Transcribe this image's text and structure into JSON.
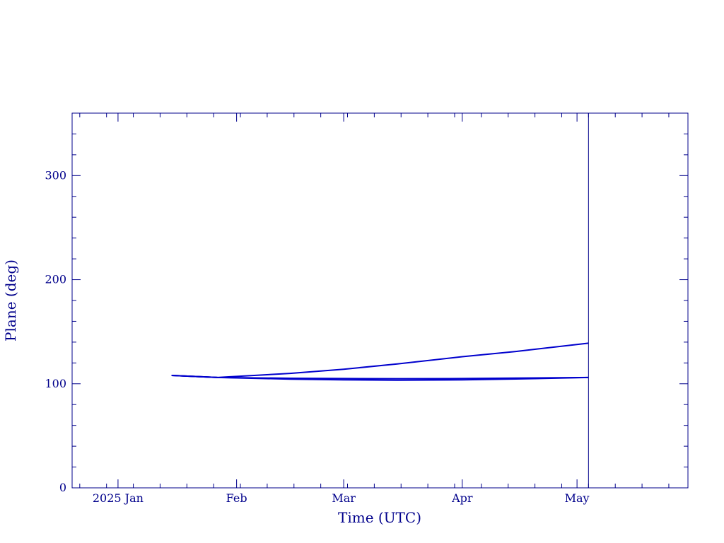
{
  "chart_data": {
    "type": "line",
    "title": "",
    "xlabel": "Time (UTC)",
    "ylabel": "Plane (deg)",
    "x_scale": "time",
    "xlim": [
      "2024-12-20",
      "2025-05-30"
    ],
    "ylim": [
      0,
      360
    ],
    "x_ticks": [
      {
        "date": "2025-01-01",
        "label": "2025 Jan"
      },
      {
        "date": "2025-02-01",
        "label": "Feb"
      },
      {
        "date": "2025-03-01",
        "label": "Mar"
      },
      {
        "date": "2025-04-01",
        "label": "Apr"
      },
      {
        "date": "2025-05-01",
        "label": "May"
      }
    ],
    "y_ticks": [
      0,
      100,
      200,
      300
    ],
    "grid": false,
    "color": "#0000cd",
    "marker_line": {
      "date": "2025-05-04"
    },
    "series": [
      {
        "x": [
          "2025-01-15",
          "2025-01-27",
          "2025-02-15",
          "2025-03-01",
          "2025-03-15",
          "2025-04-01",
          "2025-04-15",
          "2025-05-04"
        ],
        "y": [
          108,
          106,
          110,
          114,
          119,
          126,
          131,
          139
        ]
      },
      {
        "x": [
          "2025-01-15",
          "2025-01-27",
          "2025-02-15",
          "2025-03-01",
          "2025-03-15",
          "2025-04-01",
          "2025-04-15",
          "2025-05-04"
        ],
        "y": [
          108,
          106,
          104.5,
          103.8,
          103.4,
          103.8,
          104.6,
          106
        ]
      },
      {
        "x": [
          "2025-01-15",
          "2025-01-27",
          "2025-02-15",
          "2025-03-01",
          "2025-03-15",
          "2025-04-01",
          "2025-04-15",
          "2025-05-04"
        ],
        "y": [
          108,
          106,
          105.3,
          105,
          104.9,
          105,
          105.5,
          106
        ]
      }
    ]
  }
}
